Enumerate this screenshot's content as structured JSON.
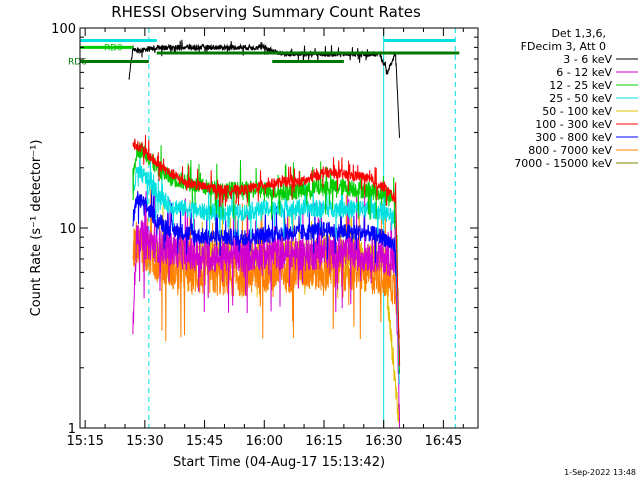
{
  "chart_data": {
    "type": "line",
    "title": "RHESSI Observing Summary Count Rates",
    "xlabel": "Start Time (04-Aug-17 15:13:42)",
    "ylabel": "Count Rate (s⁻¹ detector⁻¹)",
    "y_scale": "log",
    "ylim": [
      1,
      100
    ],
    "y_ticks": [
      1,
      10,
      100
    ],
    "y_tick_labels": [
      "1",
      "10",
      "100"
    ],
    "xlim": [
      "15:13",
      "16:53"
    ],
    "x_ticks": [
      "15:15",
      "15:30",
      "15:45",
      "16:00",
      "16:15",
      "16:30",
      "16:45"
    ],
    "grid": false,
    "legend_position": "right",
    "legend_header": [
      "Det 1,3,6,",
      "FDecim 3, Att 0"
    ],
    "series": [
      {
        "name": "3 - 6 keV",
        "color": "#000000",
        "t": [
          "15:26",
          "15:27",
          "15:28",
          "15:30",
          "15:34",
          "15:40",
          "15:45",
          "15:50",
          "15:55",
          "16:00",
          "16:02",
          "16:05",
          "16:10",
          "16:15",
          "16:20",
          "16:25",
          "16:29",
          "16:31",
          "16:33",
          "16:34"
        ],
        "values": [
          55,
          80,
          77,
          78,
          80,
          80,
          80,
          80,
          80,
          80,
          77,
          74,
          74,
          74,
          74,
          74,
          74,
          60,
          75,
          28
        ]
      },
      {
        "name": "6 - 12 keV",
        "color": "#d000d0",
        "t": [
          "15:27",
          "15:28",
          "15:30",
          "15:35",
          "15:40",
          "15:45",
          "15:50",
          "15:55",
          "16:00",
          "16:05",
          "16:10",
          "16:15",
          "16:20",
          "16:25",
          "16:30",
          "16:33",
          "16:34"
        ],
        "values": [
          3,
          10,
          8.5,
          8,
          7.5,
          7.3,
          7.3,
          7.3,
          7.5,
          7.5,
          7.4,
          7.6,
          7.6,
          7.4,
          7.2,
          6.8,
          1
        ]
      },
      {
        "name": "12 - 25 keV",
        "color": "#00cc00",
        "t": [
          "15:27",
          "15:28",
          "15:30",
          "15:33",
          "15:36",
          "15:40",
          "15:45",
          "15:50",
          "15:55",
          "16:00",
          "16:05",
          "16:10",
          "16:15",
          "16:20",
          "16:25",
          "16:30",
          "16:33",
          "16:34"
        ],
        "values": [
          18,
          25,
          24,
          20,
          18,
          17,
          16,
          15.5,
          15.5,
          15.5,
          15,
          15.5,
          16,
          16,
          15.5,
          15,
          14,
          1.8
        ]
      },
      {
        "name": "25 - 50 keV",
        "color": "#00e0e0",
        "t": [
          "15:27",
          "15:28",
          "15:30",
          "15:33",
          "15:36",
          "15:40",
          "15:45",
          "15:50",
          "15:55",
          "16:00",
          "16:05",
          "16:10",
          "16:15",
          "16:20",
          "16:25",
          "16:30",
          "16:33",
          "16:34"
        ],
        "values": [
          15,
          19,
          18,
          15,
          13,
          12.5,
          12,
          12,
          12,
          12.5,
          12.5,
          12.5,
          12.5,
          12.5,
          12.5,
          12,
          11,
          1.5
        ]
      },
      {
        "name": "50 - 100 keV",
        "color": "#e0c000",
        "t": [
          "15:27",
          "15:28",
          "15:32",
          "15:40",
          "16:00",
          "16:20",
          "16:30",
          "16:34"
        ],
        "values": [
          8,
          9,
          8,
          7.5,
          7.5,
          7.5,
          7,
          1
        ]
      },
      {
        "name": "100 - 300 keV",
        "color": "#ff0000",
        "t": [
          "15:27",
          "15:28",
          "15:30",
          "15:33",
          "15:36",
          "15:40",
          "15:45",
          "15:50",
          "15:55",
          "16:00",
          "16:05",
          "16:10",
          "16:15",
          "16:20",
          "16:25",
          "16:30",
          "16:33",
          "16:34"
        ],
        "values": [
          26,
          26,
          24,
          21,
          19,
          17,
          16,
          15.5,
          15.5,
          16.5,
          17,
          17,
          19,
          18.5,
          18,
          16,
          14,
          2
        ]
      },
      {
        "name": "300 - 800 keV",
        "color": "#0000ff",
        "t": [
          "15:27",
          "15:28",
          "15:30",
          "15:33",
          "15:36",
          "15:40",
          "15:45",
          "15:50",
          "15:55",
          "16:00",
          "16:05",
          "16:10",
          "16:15",
          "16:20",
          "16:25",
          "16:30",
          "16:33",
          "16:34"
        ],
        "values": [
          11,
          14,
          13,
          11,
          10,
          9.5,
          9,
          9,
          9,
          9.2,
          9.5,
          9.5,
          9.8,
          9.5,
          9.5,
          9,
          8,
          2.2
        ]
      },
      {
        "name": "800 - 7000 keV",
        "color": "#ff8000",
        "t": [
          "15:27",
          "15:28",
          "15:30",
          "15:35",
          "15:40",
          "15:45",
          "15:50",
          "15:55",
          "16:00",
          "16:05",
          "16:10",
          "16:15",
          "16:20",
          "16:25",
          "16:30",
          "16:33",
          "16:34"
        ],
        "values": [
          8,
          8.5,
          7.5,
          6.5,
          6,
          5.8,
          5.8,
          5.8,
          6,
          6,
          6.2,
          6.2,
          6.2,
          6,
          5.8,
          5,
          3.5
        ]
      },
      {
        "name": "7000 - 15000 keV",
        "color": "#808000",
        "t": [],
        "values": []
      }
    ],
    "annotations": {
      "vertical_lines": [
        {
          "t": "15:13",
          "color": "#00e0e0",
          "style": "solid"
        },
        {
          "t": "15:31",
          "color": "#00e0e0",
          "style": "dashed"
        },
        {
          "t": "16:30",
          "color": "#00e0e0",
          "style": "solid"
        },
        {
          "t": "16:48",
          "color": "#00e0e0",
          "style": "dashed"
        }
      ],
      "status_bars": [
        {
          "label": "RD0",
          "t_start": "15:13",
          "t_end": "15:27",
          "level": 80,
          "color": "#00cc00"
        },
        {
          "label": "RD6",
          "t_start": "15:13",
          "t_end": "15:31",
          "level": 68,
          "color": "#007700"
        },
        {
          "label": "",
          "t_start": "15:33",
          "t_end": "16:49",
          "level": 75,
          "color": "#007700"
        },
        {
          "label": "",
          "t_start": "16:02",
          "t_end": "16:20",
          "level": 68,
          "color": "#007700"
        }
      ],
      "top_bars": [
        {
          "t_start": "15:13",
          "t_end": "15:33",
          "color": "#00e0e0"
        },
        {
          "t_start": "16:30",
          "t_end": "16:48",
          "color": "#00e0e0"
        }
      ]
    },
    "footer": "1-Sep-2022 13:48"
  }
}
